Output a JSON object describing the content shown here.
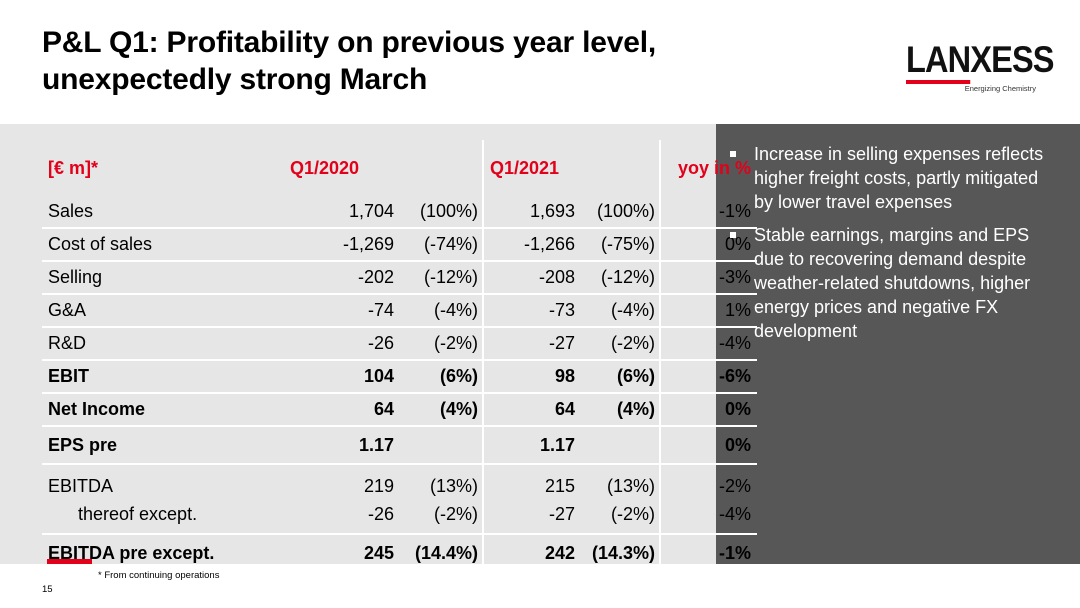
{
  "slide": {
    "title_line1": "P&L Q1: Profitability on previous year level,",
    "title_line2": "unexpectedly strong March",
    "logo_text_lan": "LAN",
    "logo_text_xess": "XESS",
    "logo_tagline": "Energizing Chemistry",
    "footnote": "* From continuing operations",
    "page_number": "15"
  },
  "table": {
    "header": {
      "label": "[€ m]*",
      "col1": "Q1/2020",
      "col2": "Q1/2021",
      "col3": "yoy in %"
    },
    "rows": [
      {
        "label": "Sales",
        "v1": "1,704",
        "p1": "(100%)",
        "v2": "1,693",
        "p2": "(100%)",
        "yoy": "-1%"
      },
      {
        "label": "Cost of sales",
        "v1": "-1,269",
        "p1": "(-74%)",
        "v2": "-1,266",
        "p2": "(-75%)",
        "yoy": "0%"
      },
      {
        "label": "Selling",
        "v1": "-202",
        "p1": "(-12%)",
        "v2": "-208",
        "p2": "(-12%)",
        "yoy": "-3%"
      },
      {
        "label": "G&A",
        "v1": "-74",
        "p1": "(-4%)",
        "v2": "-73",
        "p2": "(-4%)",
        "yoy": "1%"
      },
      {
        "label": "R&D",
        "v1": "-26",
        "p1": "(-2%)",
        "v2": "-27",
        "p2": "(-2%)",
        "yoy": "-4%"
      },
      {
        "label": "EBIT",
        "v1": "104",
        "p1": "(6%)",
        "v2": "98",
        "p2": "(6%)",
        "yoy": "-6%"
      },
      {
        "label": "Net Income",
        "v1": "64",
        "p1": "(4%)",
        "v2": "64",
        "p2": "(4%)",
        "yoy": "0%"
      },
      {
        "label": "EPS pre",
        "v1": "1.17",
        "p1": "",
        "v2": "1.17",
        "p2": "",
        "yoy": "0%"
      },
      {
        "label": "EBITDA",
        "v1": "219",
        "p1": "(13%)",
        "v2": "215",
        "p2": "(13%)",
        "yoy": "-2%"
      },
      {
        "label": "thereof except.",
        "v1": "-26",
        "p1": "(-2%)",
        "v2": "-27",
        "p2": "(-2%)",
        "yoy": "-4%"
      },
      {
        "label": "EBITDA pre except.",
        "v1": "245",
        "p1": "(14.4%)",
        "v2": "242",
        "p2": "(14.3%)",
        "yoy": "-1%"
      }
    ]
  },
  "bullets": [
    "Increase in selling expenses reflects higher freight costs, partly mitigated by lower travel expenses",
    "Stable earnings, margins and EPS  due to recovering demand despite weather-related shutdowns, higher energy prices and negative FX development"
  ],
  "colors": {
    "accent": "#e2001a",
    "panel_left": "#e6e6e6",
    "panel_right": "#575757"
  }
}
